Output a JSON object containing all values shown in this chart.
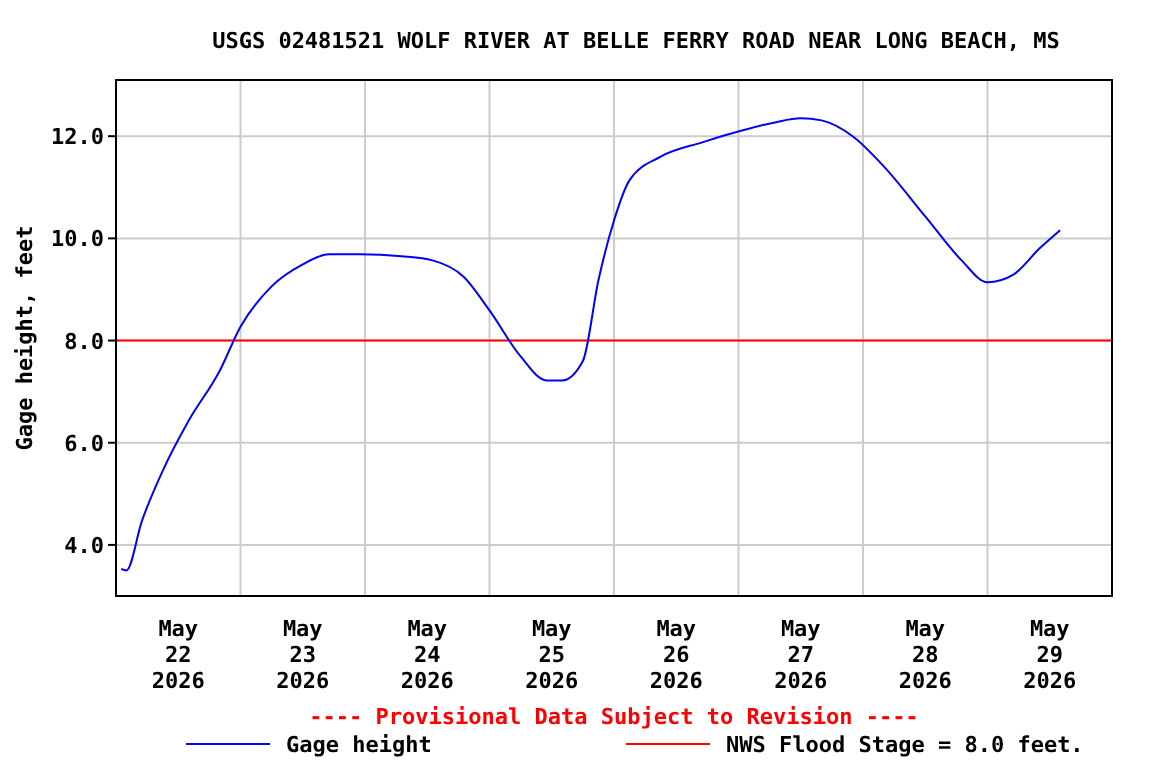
{
  "chart_data": {
    "type": "line",
    "title": "USGS 02481521 WOLF RIVER AT BELLE FERRY ROAD NEAR LONG BEACH, MS",
    "ylabel": "Gage height, feet",
    "annotations": [
      "---- Provisional Data Subject to Revision ----"
    ],
    "x": [
      "2026-05-22T01:00",
      "2026-05-22T02:00",
      "2026-05-22T05:00",
      "2026-05-22T09:00",
      "2026-05-22T14:00",
      "2026-05-22T20:00",
      "2026-05-23T00:00",
      "2026-05-23T06:00",
      "2026-05-23T12:00",
      "2026-05-23T17:00",
      "2026-05-23T23:00",
      "2026-05-24T07:00",
      "2026-05-24T13:00",
      "2026-05-24T19:00",
      "2026-05-25T00:00",
      "2026-05-25T06:00",
      "2026-05-25T11:00",
      "2026-05-25T14:00",
      "2026-05-25T18:00",
      "2026-05-25T21:00",
      "2026-05-26T00:00",
      "2026-05-26T03:00",
      "2026-05-26T09:00",
      "2026-05-26T17:00",
      "2026-05-27T01:00",
      "2026-05-27T07:00",
      "2026-05-27T12:00",
      "2026-05-27T16:00",
      "2026-05-27T22:00",
      "2026-05-28T04:00",
      "2026-05-28T12:00",
      "2026-05-28T19:00",
      "2026-05-29T00:00",
      "2026-05-29T05:00",
      "2026-05-29T10:00",
      "2026-05-29T14:00"
    ],
    "series": [
      {
        "name": "Gage height",
        "color": "#0000ff",
        "values": [
          3.53,
          3.5,
          4.47,
          5.45,
          6.43,
          7.41,
          8.27,
          9.06,
          9.49,
          9.69,
          9.69,
          9.65,
          9.57,
          9.25,
          8.59,
          7.69,
          7.22,
          7.22,
          7.6,
          9.18,
          10.35,
          11.14,
          11.6,
          11.88,
          12.12,
          12.27,
          12.35,
          12.31,
          12.0,
          11.41,
          10.43,
          9.57,
          9.14,
          9.29,
          9.8,
          10.16
        ]
      }
    ],
    "ref_lines": [
      {
        "axis": "y",
        "value": 8.0,
        "label": "NWS Flood Stage = 8.0 feet.",
        "color": "#ff0000"
      }
    ],
    "xlim": [
      "2026-05-22T00:00",
      "2026-05-30T00:00"
    ],
    "xticks": [
      {
        "value": "2026-05-22T12:00",
        "label": "May\n22\n2026"
      },
      {
        "value": "2026-05-23T00:00",
        "label": null
      },
      {
        "value": "2026-05-23T12:00",
        "label": "May\n23\n2026"
      },
      {
        "value": "2026-05-24T00:00",
        "label": null
      },
      {
        "value": "2026-05-24T12:00",
        "label": "May\n24\n2026"
      },
      {
        "value": "2026-05-25T00:00",
        "label": null
      },
      {
        "value": "2026-05-25T12:00",
        "label": "May\n25\n2026"
      },
      {
        "value": "2026-05-26T00:00",
        "label": null
      },
      {
        "value": "2026-05-26T12:00",
        "label": "May\n26\n2026"
      },
      {
        "value": "2026-05-27T00:00",
        "label": null
      },
      {
        "value": "2026-05-27T12:00",
        "label": "May\n27\n2026"
      },
      {
        "value": "2026-05-28T00:00",
        "label": null
      },
      {
        "value": "2026-05-28T12:00",
        "label": "May\n28\n2026"
      },
      {
        "value": "2026-05-29T00:00",
        "label": null
      },
      {
        "value": "2026-05-29T12:00",
        "label": "May\n29\n2026"
      }
    ],
    "ylim": [
      3.0,
      13.1
    ],
    "yticks": [
      {
        "value": 4,
        "label": "4.0"
      },
      {
        "value": 6,
        "label": "6.0"
      },
      {
        "value": 8,
        "label": "8.0"
      },
      {
        "value": 10,
        "label": "10.0"
      },
      {
        "value": 12,
        "label": "12.0"
      }
    ],
    "grid": true,
    "legend": "bottom",
    "line_style": "solid",
    "marker": "none"
  }
}
